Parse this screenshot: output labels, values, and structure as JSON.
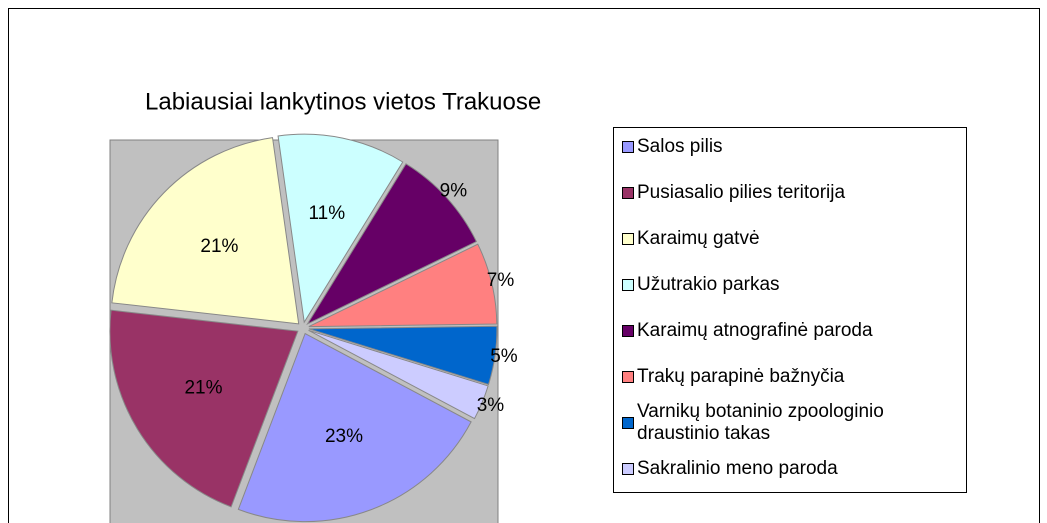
{
  "chart_data": {
    "type": "pie",
    "title": "Labiausiai lankytinos vietos Trakuose",
    "categories": [
      "Salos pilis",
      "Pusiasalio pilies teritorija",
      "Karaimų gatvė",
      "Užutrakio parkas",
      "Karaimų atnografinė paroda",
      "Trakų parapinė bažnyčia",
      "Varnikų botaninio zpoologinio draustinio takas",
      "Sakralinio meno paroda"
    ],
    "values": [
      23,
      21,
      21,
      11,
      9,
      7,
      5,
      3
    ],
    "value_labels": [
      "23%",
      "21%",
      "21%",
      "11%",
      "9%",
      "7%",
      "5%",
      "3%"
    ],
    "colors": [
      "#9999ff",
      "#993366",
      "#ffffcc",
      "#ccffff",
      "#660066",
      "#ff8080",
      "#0066cc",
      "#ccccff"
    ],
    "legend": "right"
  }
}
